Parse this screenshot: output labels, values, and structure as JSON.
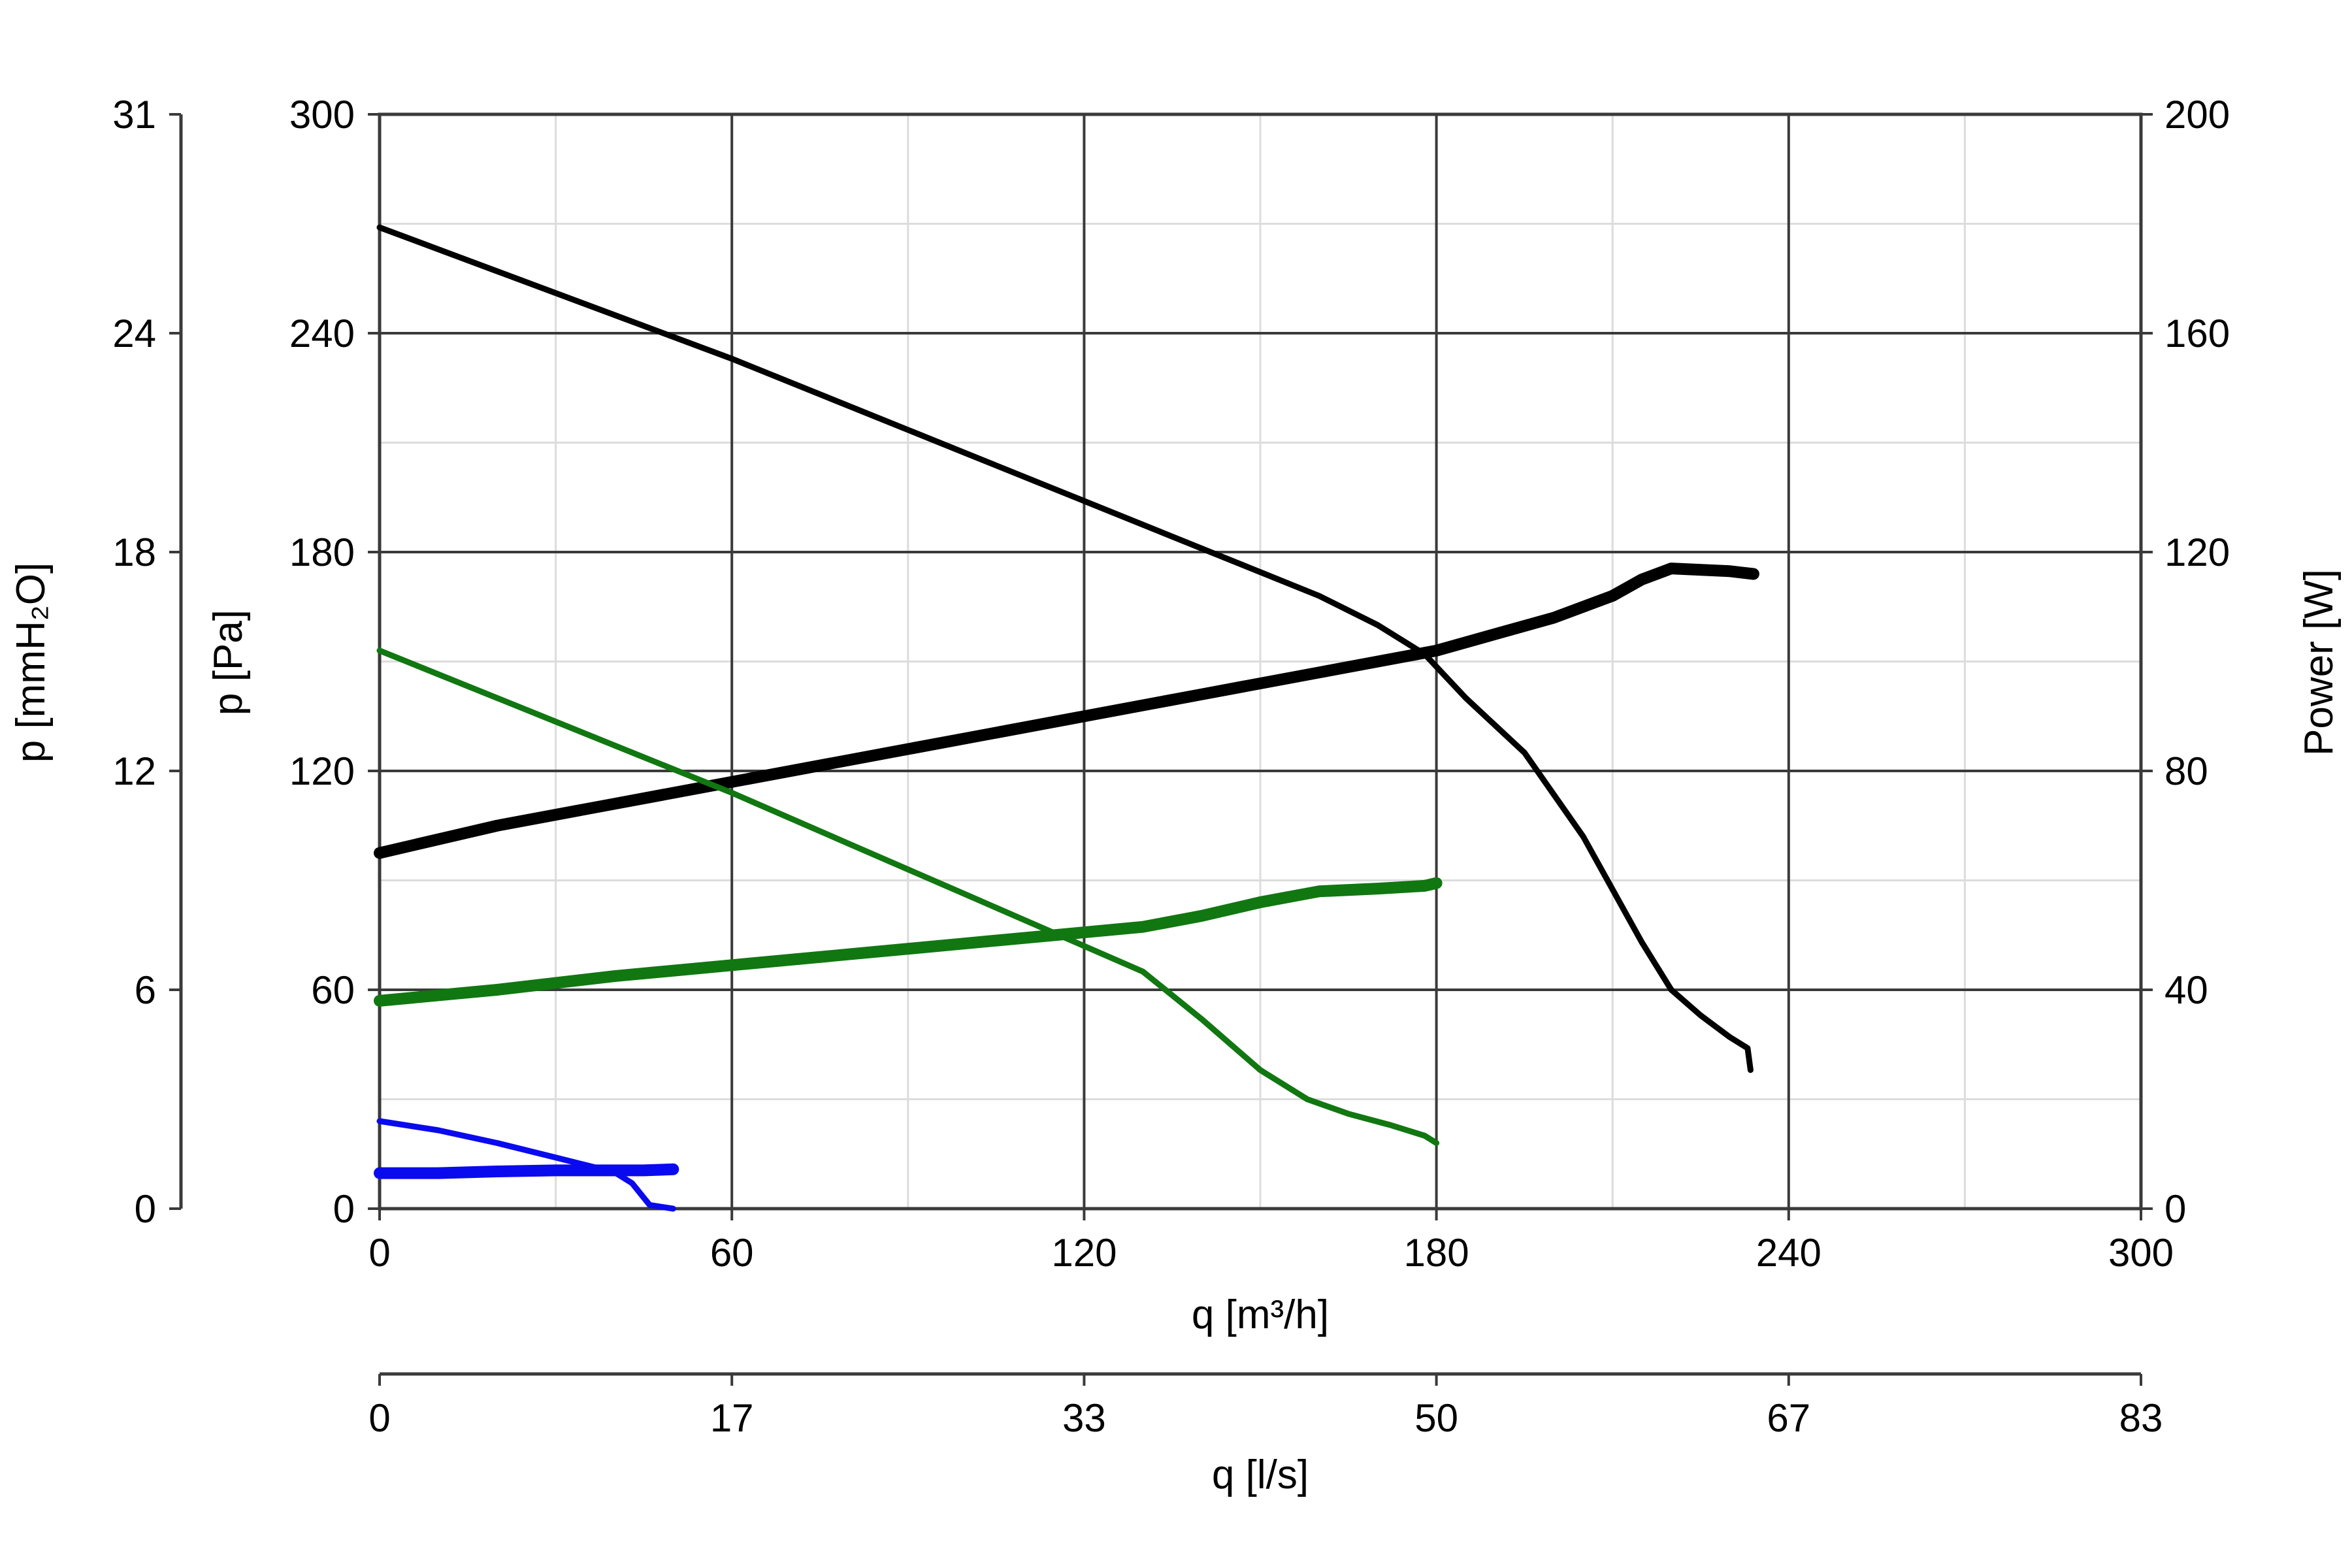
{
  "chart_data": {
    "type": "line",
    "x_axis": {
      "label": "q [m³/h]",
      "range": [
        0,
        300
      ],
      "ticks": [
        "0",
        "60",
        "120",
        "180",
        "240",
        "300"
      ]
    },
    "x2_axis": {
      "label": "q [l/s]",
      "ticks": [
        "0",
        "17",
        "33",
        "50",
        "67",
        "83"
      ]
    },
    "y_axis": {
      "label": "p [Pa]",
      "range": [
        0,
        300
      ],
      "ticks": [
        "0",
        "60",
        "120",
        "180",
        "240",
        "300"
      ]
    },
    "y_outer_axis": {
      "label": "p [mmH₂O]",
      "ticks": [
        "0",
        "6",
        "12",
        "18",
        "24",
        "31"
      ]
    },
    "y_right_axis": {
      "label": "Power [W]",
      "range": [
        0,
        200
      ],
      "ticks": [
        "0",
        "40",
        "80",
        "120",
        "160",
        "200"
      ]
    },
    "grid": true,
    "series": [
      {
        "kind": "pressure",
        "axis": "pressure",
        "color": "#000000",
        "points": [
          [
            0,
            269
          ],
          [
            20,
            257
          ],
          [
            40,
            245
          ],
          [
            60,
            233
          ],
          [
            80,
            220
          ],
          [
            100,
            207
          ],
          [
            120,
            194
          ],
          [
            140,
            181
          ],
          [
            160,
            168
          ],
          [
            170,
            160
          ],
          [
            178,
            152
          ],
          [
            185,
            140
          ],
          [
            195,
            125
          ],
          [
            205,
            102
          ],
          [
            215,
            73
          ],
          [
            220,
            60
          ],
          [
            225,
            53
          ],
          [
            230,
            47
          ],
          [
            233,
            44
          ],
          [
            233.5,
            38
          ]
        ]
      },
      {
        "kind": "power",
        "axis": "power",
        "color": "#000000",
        "points": [
          [
            0,
            65
          ],
          [
            20,
            70
          ],
          [
            40,
            74
          ],
          [
            60,
            78
          ],
          [
            80,
            82
          ],
          [
            100,
            86
          ],
          [
            120,
            90
          ],
          [
            140,
            94
          ],
          [
            160,
            98
          ],
          [
            180,
            102
          ],
          [
            190,
            105
          ],
          [
            200,
            108
          ],
          [
            210,
            112
          ],
          [
            215,
            115
          ],
          [
            220,
            117
          ],
          [
            230,
            116.5
          ],
          [
            234,
            116
          ]
        ]
      },
      {
        "kind": "pressure",
        "axis": "pressure",
        "color": "#117711",
        "points": [
          [
            0,
            153
          ],
          [
            20,
            140
          ],
          [
            40,
            127
          ],
          [
            60,
            114
          ],
          [
            80,
            100
          ],
          [
            100,
            86
          ],
          [
            120,
            72
          ],
          [
            130,
            65
          ],
          [
            140,
            52
          ],
          [
            150,
            38
          ],
          [
            158,
            30
          ],
          [
            165,
            26
          ],
          [
            172,
            23
          ],
          [
            178,
            20
          ],
          [
            180,
            18
          ]
        ]
      },
      {
        "kind": "power",
        "axis": "power",
        "color": "#117711",
        "points": [
          [
            0,
            38
          ],
          [
            20,
            40
          ],
          [
            40,
            42.5
          ],
          [
            60,
            44.5
          ],
          [
            80,
            46.5
          ],
          [
            100,
            48.5
          ],
          [
            120,
            50.5
          ],
          [
            130,
            51.5
          ],
          [
            140,
            53.5
          ],
          [
            150,
            56
          ],
          [
            160,
            58
          ],
          [
            170,
            58.5
          ],
          [
            178,
            59
          ],
          [
            180,
            59.5
          ]
        ]
      },
      {
        "kind": "pressure",
        "axis": "pressure",
        "color": "#0a0aee",
        "points": [
          [
            0,
            24
          ],
          [
            10,
            21.5
          ],
          [
            20,
            18
          ],
          [
            30,
            14
          ],
          [
            40,
            10
          ],
          [
            43,
            7
          ],
          [
            46,
            1
          ],
          [
            50,
            0
          ]
        ]
      },
      {
        "kind": "power",
        "axis": "power",
        "color": "#0a0aee",
        "points": [
          [
            0,
            6.5
          ],
          [
            10,
            6.5
          ],
          [
            20,
            6.8
          ],
          [
            30,
            7
          ],
          [
            40,
            7
          ],
          [
            45,
            7
          ],
          [
            50,
            7.2
          ]
        ]
      }
    ]
  }
}
